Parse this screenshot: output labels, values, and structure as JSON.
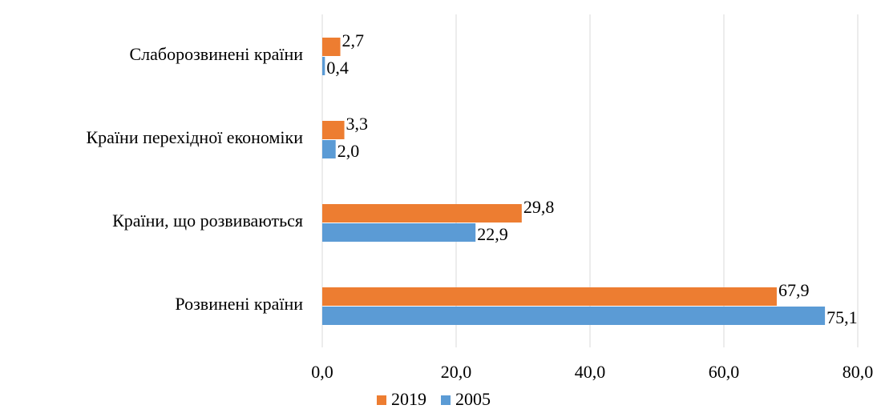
{
  "chart_data": {
    "type": "bar",
    "orientation": "horizontal",
    "categories": [
      "Слаборозвинені країни",
      "Країни перехідної економіки",
      "Країни, що розвиваються",
      "Розвинені країни"
    ],
    "series": [
      {
        "name": "2019",
        "color": "#ed7d31",
        "values": [
          2.7,
          3.3,
          29.8,
          67.9
        ],
        "value_labels": [
          "2,7",
          "3,3",
          "29,8",
          "67,9"
        ]
      },
      {
        "name": "2005",
        "color": "#5b9bd5",
        "values": [
          0.4,
          2.0,
          22.9,
          75.1
        ],
        "value_labels": [
          "0,4",
          "2,0",
          "22,9",
          "75,1"
        ]
      }
    ],
    "xlim": [
      0,
      80
    ],
    "xticks": [
      {
        "value": 0,
        "label": "0,0"
      },
      {
        "value": 20,
        "label": "20,0"
      },
      {
        "value": 40,
        "label": "40,0"
      },
      {
        "value": 60,
        "label": "60,0"
      },
      {
        "value": 80,
        "label": "80,0"
      }
    ],
    "grid": true,
    "legend": "bottom"
  }
}
